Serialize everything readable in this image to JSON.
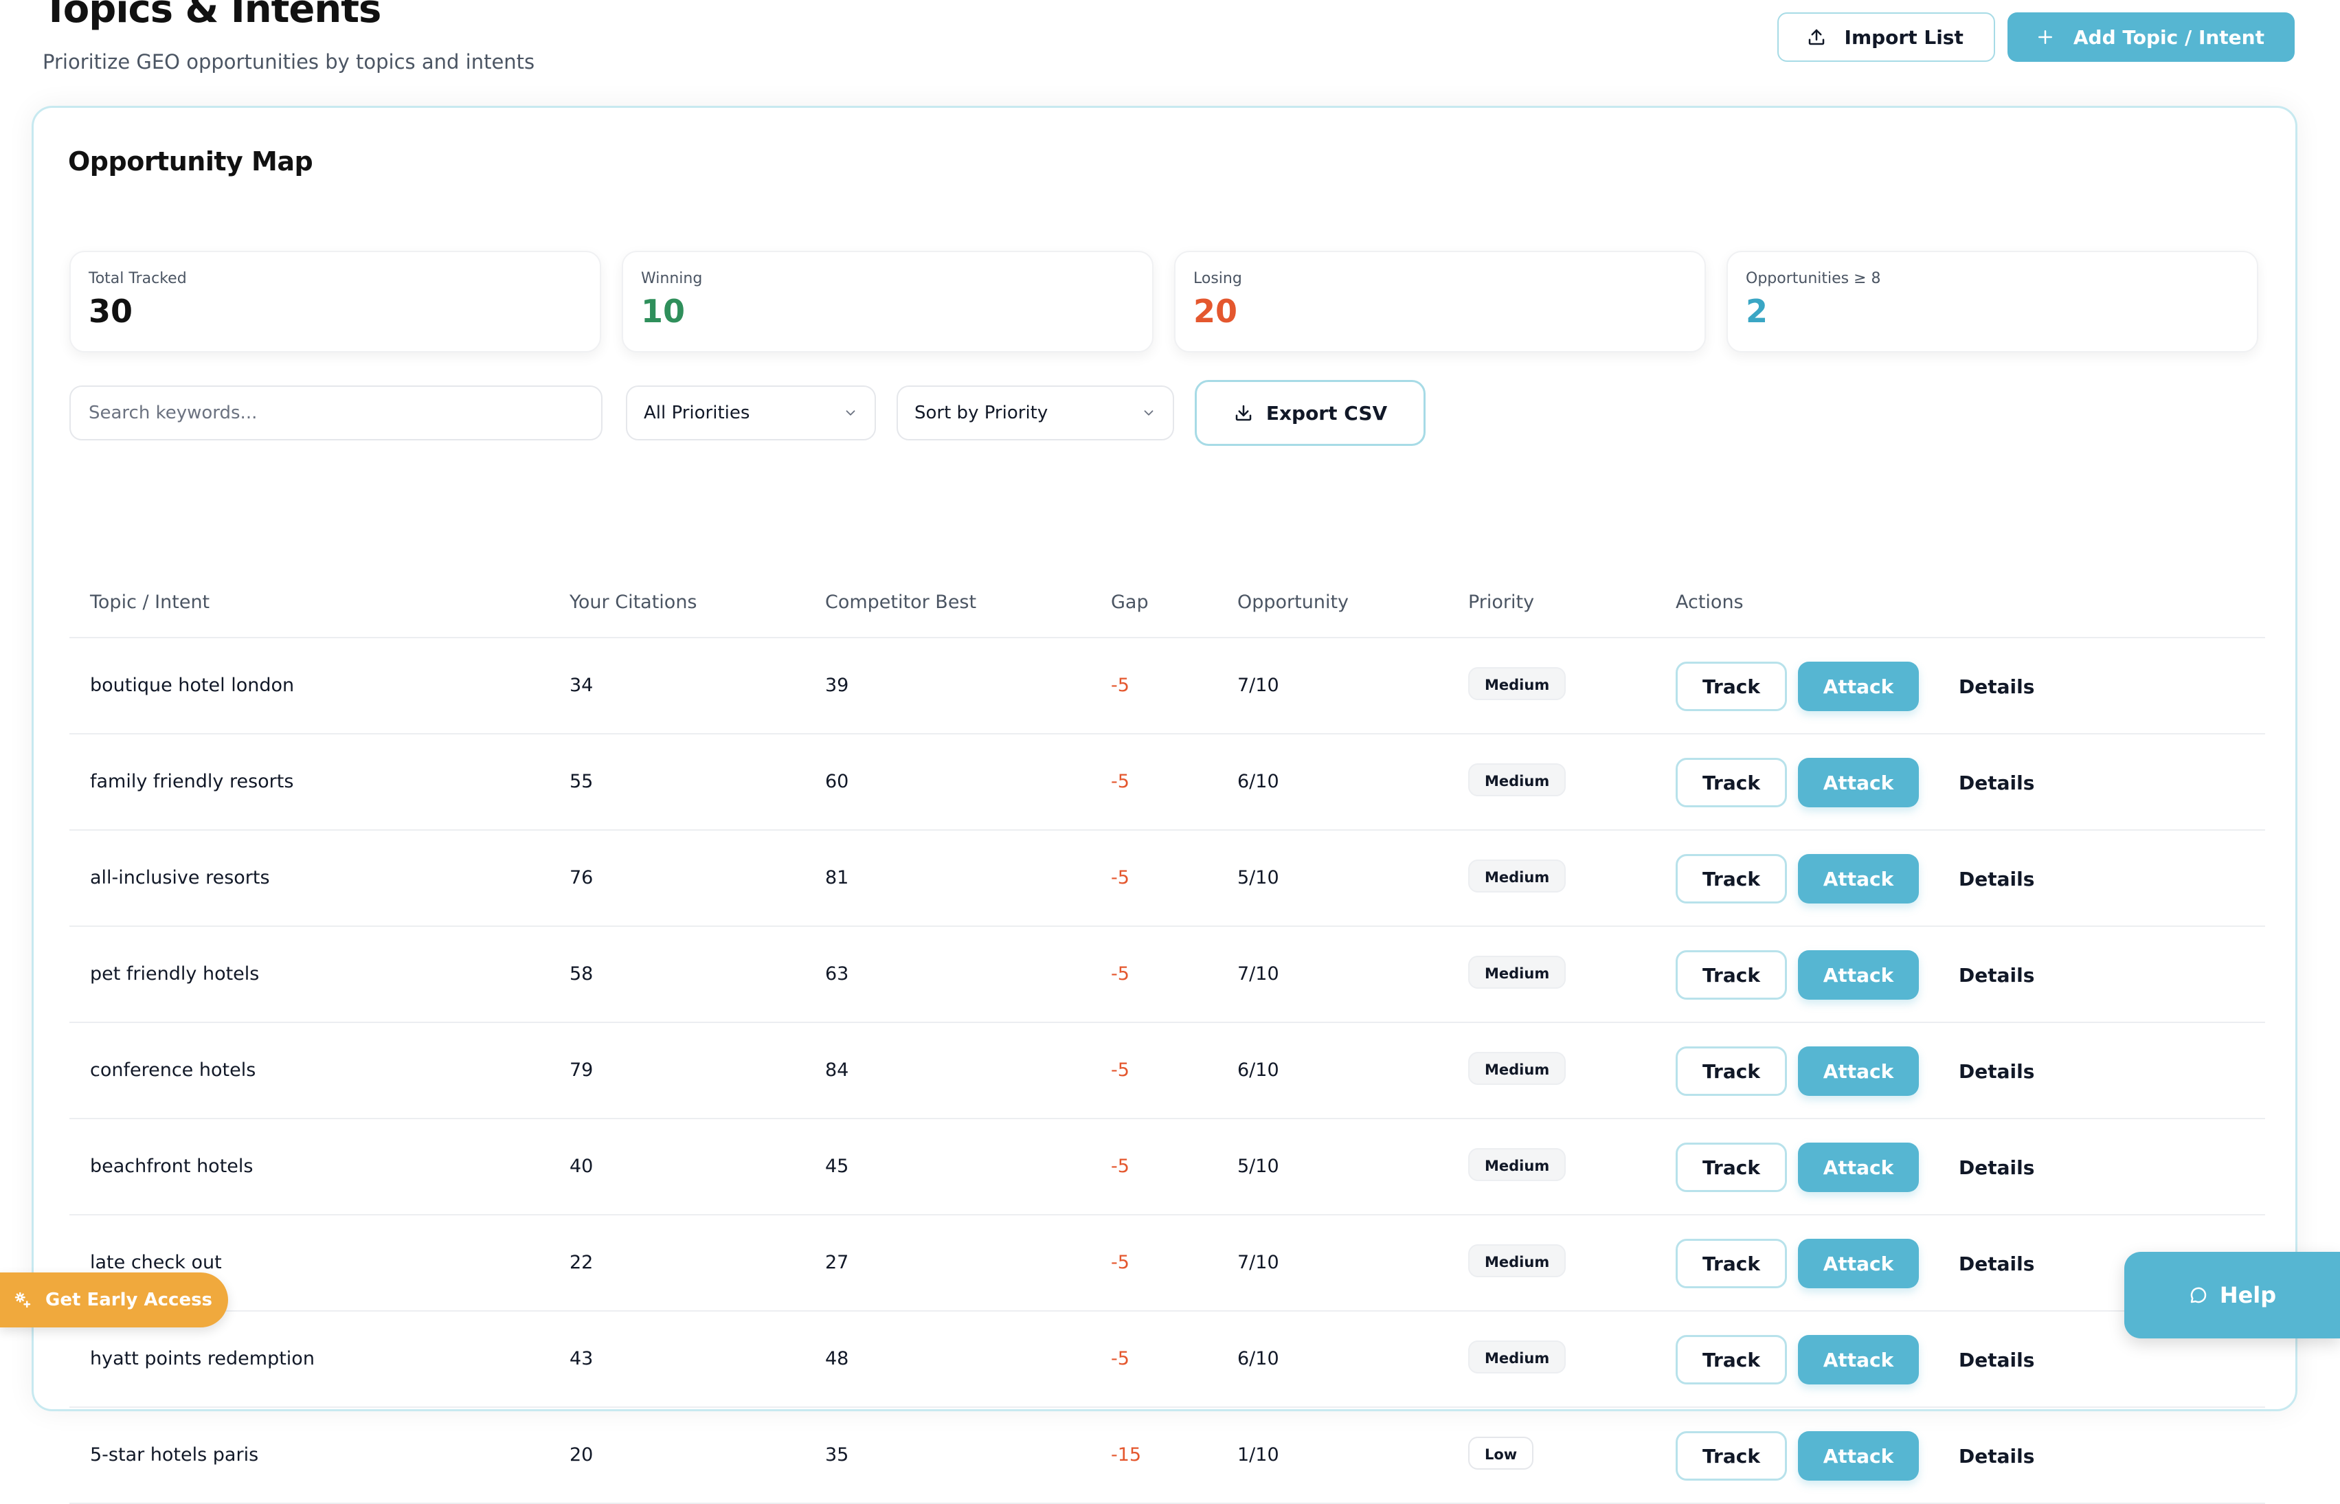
{
  "header": {
    "title": "Topics & Intents",
    "subtitle": "Prioritize GEO opportunities by topics and intents",
    "import_label": "Import List",
    "add_label": "Add Topic / Intent"
  },
  "card": {
    "title": "Opportunity Map"
  },
  "stats": [
    {
      "label": "Total Tracked",
      "value": "30",
      "color": "#111111"
    },
    {
      "label": "Winning",
      "value": "10",
      "color": "#2f8f5b"
    },
    {
      "label": "Losing",
      "value": "20",
      "color": "#e4572e"
    },
    {
      "label": "Opportunities ≥ 8",
      "value": "2",
      "color": "#3aa6c4"
    }
  ],
  "filters": {
    "search_placeholder": "Search keywords...",
    "priority_value": "All Priorities",
    "sort_value": "Sort by Priority",
    "export_label": "Export CSV"
  },
  "table": {
    "headers": [
      "Topic / Intent",
      "Your Citations",
      "Competitor Best",
      "Gap",
      "Opportunity",
      "Priority",
      "Actions"
    ],
    "rows": [
      {
        "topic": "boutique hotel london",
        "citations": "34",
        "competitor": "39",
        "gap": "-5",
        "opportunity": "7/10",
        "priority": "Medium"
      },
      {
        "topic": "family friendly resorts",
        "citations": "55",
        "competitor": "60",
        "gap": "-5",
        "opportunity": "6/10",
        "priority": "Medium"
      },
      {
        "topic": "all-inclusive resorts",
        "citations": "76",
        "competitor": "81",
        "gap": "-5",
        "opportunity": "5/10",
        "priority": "Medium"
      },
      {
        "topic": "pet friendly hotels",
        "citations": "58",
        "competitor": "63",
        "gap": "-5",
        "opportunity": "7/10",
        "priority": "Medium"
      },
      {
        "topic": "conference hotels",
        "citations": "79",
        "competitor": "84",
        "gap": "-5",
        "opportunity": "6/10",
        "priority": "Medium"
      },
      {
        "topic": "beachfront hotels",
        "citations": "40",
        "competitor": "45",
        "gap": "-5",
        "opportunity": "5/10",
        "priority": "Medium"
      },
      {
        "topic": "late check out",
        "citations": "22",
        "competitor": "27",
        "gap": "-5",
        "opportunity": "7/10",
        "priority": "Medium"
      },
      {
        "topic": "hyatt points redemption",
        "citations": "43",
        "competitor": "48",
        "gap": "-5",
        "opportunity": "6/10",
        "priority": "Medium"
      },
      {
        "topic": "5-star hotels paris",
        "citations": "20",
        "competitor": "35",
        "gap": "-15",
        "opportunity": "1/10",
        "priority": "Low"
      }
    ],
    "actions": {
      "track_label": "Track",
      "attack_label": "Attack",
      "details_label": "Details"
    }
  },
  "floating": {
    "early_access_label": "Get Early Access",
    "help_label": "Help"
  },
  "colors": {
    "accent": "#56b6d2",
    "negative": "#e4572e",
    "positive": "#2f8f5b",
    "early_access": "#f0a93d"
  }
}
